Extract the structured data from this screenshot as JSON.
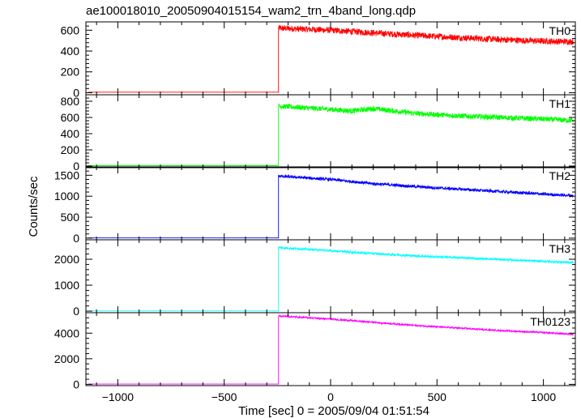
{
  "chart_data": {
    "type": "line",
    "title": "ae100018010_20050904015154_wam2_trn_4band_long.qdp",
    "xlabel": "Time [sec] 0 = 2005/09/04 01:51:54",
    "ylabel": "Counts/sec",
    "xlim": [
      -1150,
      1150
    ],
    "x_ticks": [
      -1000,
      -500,
      0,
      500,
      1000
    ],
    "x_tick_labels": [
      "−1000",
      "−500",
      "0",
      "500",
      "1000"
    ],
    "step_time": -245,
    "grid": false,
    "panels": [
      {
        "name": "TH0",
        "color": "#ff0000",
        "ylim": [
          -20,
          680
        ],
        "y_ticks": [
          0,
          200,
          400,
          600
        ],
        "baseline": 5,
        "x": [
          -245,
          0,
          200,
          400,
          600,
          800,
          1000,
          1150
        ],
        "values": [
          620,
          600,
          575,
          550,
          530,
          510,
          495,
          490
        ],
        "noise": 30
      },
      {
        "name": "TH1",
        "color": "#00ff00",
        "ylim": [
          -20,
          880
        ],
        "y_ticks": [
          0,
          200,
          400,
          600,
          800
        ],
        "baseline": 5,
        "x": [
          -245,
          0,
          100,
          200,
          400,
          600,
          800,
          1000,
          1150
        ],
        "values": [
          740,
          700,
          680,
          710,
          650,
          620,
          600,
          580,
          560
        ],
        "noise": 32
      },
      {
        "name": "TH2",
        "color": "#0000ff",
        "ylim": [
          -40,
          1700
        ],
        "y_ticks": [
          0,
          500,
          1000,
          1500
        ],
        "baseline": 5,
        "x": [
          -245,
          0,
          200,
          400,
          600,
          800,
          1000,
          1150
        ],
        "values": [
          1480,
          1400,
          1300,
          1230,
          1170,
          1110,
          1050,
          1010
        ],
        "noise": 35
      },
      {
        "name": "TH3",
        "color": "#00ffff",
        "ylim": [
          -60,
          2750
        ],
        "y_ticks": [
          0,
          1000,
          2000
        ],
        "baseline": 10,
        "x": [
          -245,
          0,
          200,
          400,
          600,
          800,
          1000,
          1150
        ],
        "values": [
          2450,
          2330,
          2220,
          2130,
          2060,
          1990,
          1920,
          1870
        ],
        "noise": 40
      },
      {
        "name": "TH0123",
        "color": "#ff00ff",
        "ylim": [
          -100,
          5600
        ],
        "y_ticks": [
          0,
          2000,
          4000
        ],
        "baseline": 20,
        "x": [
          -245,
          0,
          200,
          400,
          600,
          800,
          1000,
          1150
        ],
        "values": [
          5350,
          5100,
          4850,
          4600,
          4400,
          4200,
          4050,
          3900
        ],
        "noise": 60
      }
    ]
  }
}
